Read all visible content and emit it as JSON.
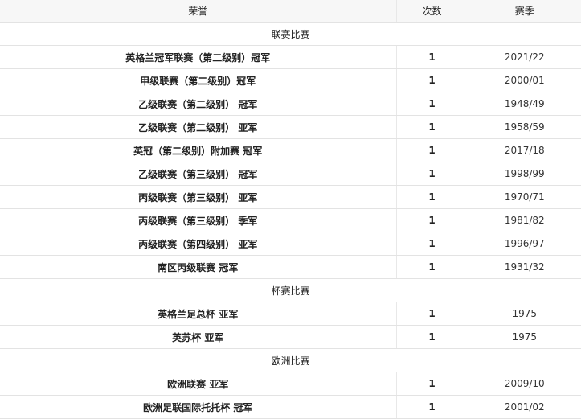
{
  "headers": [
    "荣誉",
    "次数",
    "赛季"
  ],
  "sections": [
    {
      "title": "联赛比赛",
      "rows": [
        {
          "name": "英格兰冠军联赛（第二级别）冠军",
          "count": "1",
          "season": "2021/22"
        },
        {
          "name": "甲级联赛（第二级别）冠军",
          "count": "1",
          "season": "2000/01"
        },
        {
          "name": "乙级联赛（第二级别） 冠军",
          "count": "1",
          "season": "1948/49"
        },
        {
          "name": "乙级联赛（第二级别） 亚军",
          "count": "1",
          "season": "1958/59"
        },
        {
          "name": "英冠（第二级别）附加赛 冠军",
          "count": "1",
          "season": "2017/18"
        },
        {
          "name": "乙级联赛（第三级别） 冠军",
          "count": "1",
          "season": "1998/99"
        },
        {
          "name": "丙级联赛（第三级别） 亚军",
          "count": "1",
          "season": "1970/71"
        },
        {
          "name": "丙级联赛（第三级别） 季军",
          "count": "1",
          "season": "1981/82"
        },
        {
          "name": "丙级联赛（第四级别） 亚军",
          "count": "1",
          "season": "1996/97"
        },
        {
          "name": "南区丙级联赛 冠军",
          "count": "1",
          "season": "1931/32"
        }
      ]
    },
    {
      "title": "杯赛比赛",
      "rows": [
        {
          "name": "英格兰足总杯 亚军",
          "count": "1",
          "season": "1975"
        },
        {
          "name": "英苏杯 亚军",
          "count": "1",
          "season": "1975"
        }
      ]
    },
    {
      "title": "欧洲比赛",
      "rows": [
        {
          "name": "欧洲联赛 亚军",
          "count": "1",
          "season": "2009/10"
        },
        {
          "name": "欧洲足联国际托托杯 冠军",
          "count": "1",
          "season": "2001/02"
        }
      ]
    }
  ]
}
